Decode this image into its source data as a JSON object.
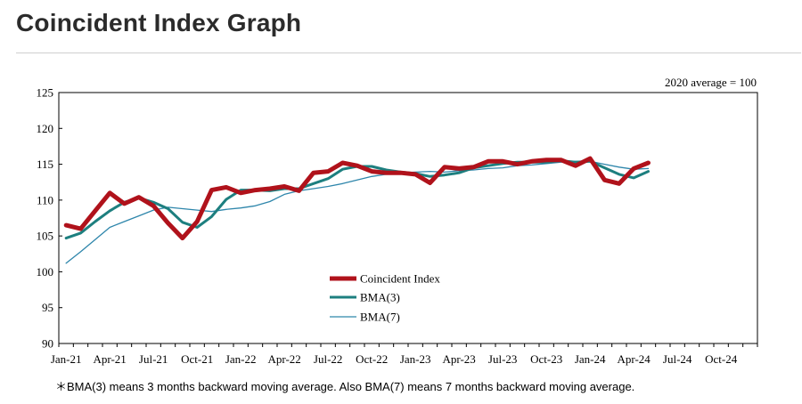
{
  "page": {
    "title": "Coincident Index Graph",
    "footnote": "＊BMA(3) means 3 months backward moving average. Also BMA(7) means 7 months backward moving average."
  },
  "chart_data": {
    "type": "line",
    "title": "Coincident Index Graph",
    "note": "2020 average = 100",
    "xlabel": "",
    "ylabel": "",
    "ylim": [
      90,
      125
    ],
    "yticks": [
      90,
      95,
      100,
      105,
      110,
      115,
      120,
      125
    ],
    "x_tick_labels": [
      "Jan-21",
      "Apr-21",
      "Jul-21",
      "Oct-21",
      "Jan-22",
      "Apr-22",
      "Jul-22",
      "Oct-22",
      "Jan-23",
      "Apr-23",
      "Jul-23",
      "Oct-23",
      "Jan-24",
      "Apr-24",
      "Jul-24",
      "Oct-24"
    ],
    "months": [
      "Jan-21",
      "Feb-21",
      "Mar-21",
      "Apr-21",
      "May-21",
      "Jun-21",
      "Jul-21",
      "Aug-21",
      "Sep-21",
      "Oct-21",
      "Nov-21",
      "Dec-21",
      "Jan-22",
      "Feb-22",
      "Mar-22",
      "Apr-22",
      "May-22",
      "Jun-22",
      "Jul-22",
      "Aug-22",
      "Sep-22",
      "Oct-22",
      "Nov-22",
      "Dec-22",
      "Jan-23",
      "Feb-23",
      "Mar-23",
      "Apr-23",
      "May-23",
      "Jun-23",
      "Jul-23",
      "Aug-23",
      "Sep-23",
      "Oct-23",
      "Nov-23",
      "Dec-23",
      "Jan-24",
      "Feb-24",
      "Mar-24",
      "Apr-24",
      "May-24",
      "Jun-24",
      "Jul-24",
      "Aug-24",
      "Sep-24",
      "Oct-24",
      "Nov-24",
      "Dec-24"
    ],
    "series": [
      {
        "name": "Coincident Index",
        "color": "#b0121b",
        "values": [
          106.5,
          106.0,
          108.5,
          111.0,
          109.5,
          110.4,
          109.2,
          106.8,
          104.7,
          107.0,
          111.4,
          111.8,
          111.0,
          111.4,
          111.6,
          111.9,
          111.3,
          113.8,
          114.0,
          115.2,
          114.8,
          114.0,
          113.8,
          113.8,
          113.6,
          112.4,
          114.6,
          114.4,
          114.6,
          115.4,
          115.4,
          115.0,
          115.4,
          115.6,
          115.6,
          114.8,
          115.8,
          112.8,
          112.3,
          114.4,
          115.2
        ]
      },
      {
        "name": "BMA(3)",
        "color": "#1d7f7f",
        "values": [
          104.7,
          105.4,
          107.0,
          108.5,
          109.7,
          110.3,
          109.7,
          108.8,
          106.9,
          106.2,
          107.7,
          110.1,
          111.4,
          111.4,
          111.3,
          111.6,
          111.6,
          112.3,
          113.0,
          114.3,
          114.7,
          114.7,
          114.2,
          113.9,
          113.7,
          113.3,
          113.5,
          113.8,
          114.5,
          114.8,
          115.1,
          115.3,
          115.3,
          115.3,
          115.5,
          115.3,
          115.4,
          114.5,
          113.6,
          113.1,
          114.0
        ]
      },
      {
        "name": "BMA(7)",
        "color": "#2e86ab",
        "values": [
          101.2,
          102.8,
          104.5,
          106.2,
          107.0,
          107.8,
          108.6,
          109.0,
          108.8,
          108.6,
          108.4,
          108.7,
          108.9,
          109.2,
          109.8,
          110.8,
          111.3,
          111.6,
          111.9,
          112.3,
          112.8,
          113.3,
          113.6,
          113.8,
          113.9,
          114.0,
          113.9,
          114.1,
          114.2,
          114.4,
          114.5,
          114.8,
          114.9,
          115.1,
          115.3,
          115.4,
          115.4,
          115.0,
          114.6,
          114.3,
          114.4
        ]
      }
    ],
    "legend": {
      "position": "lower-center",
      "entries": [
        "Coincident Index",
        "BMA(3)",
        "BMA(7)"
      ]
    }
  }
}
